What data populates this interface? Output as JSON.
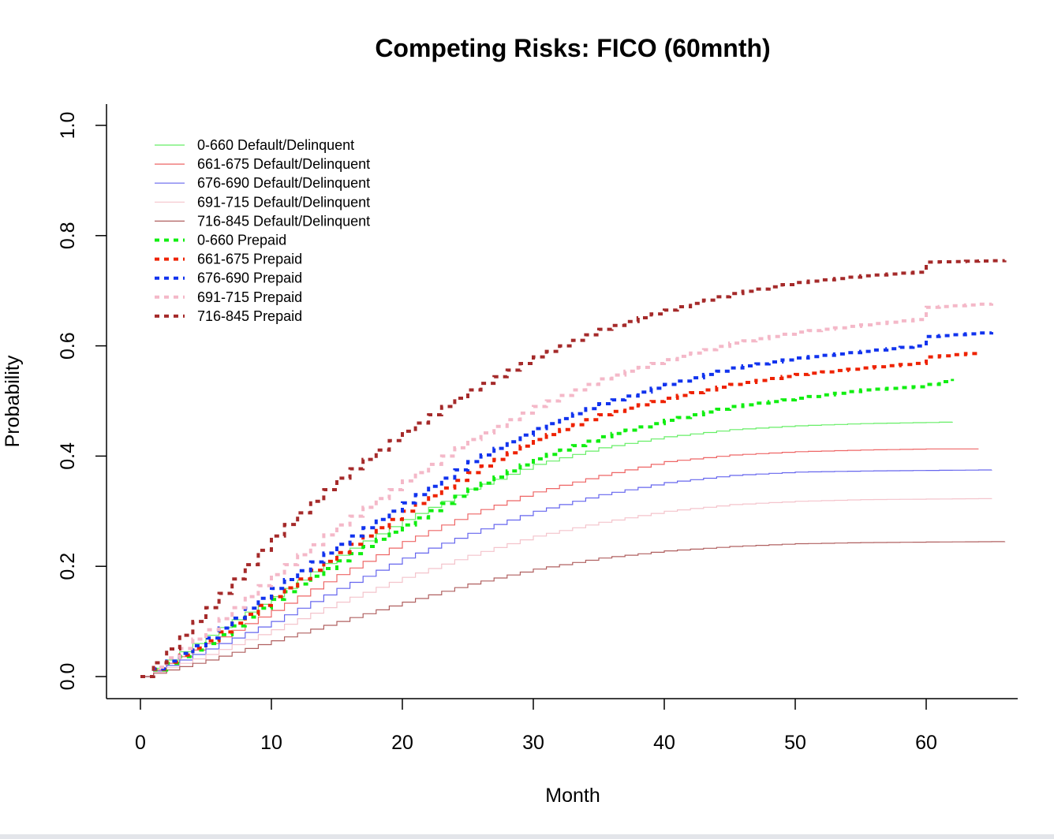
{
  "chart_data": {
    "type": "line",
    "title": "Competing Risks: FICO (60mnth)",
    "xlabel": "Month",
    "ylabel": "Probability",
    "xlim": [
      0,
      66
    ],
    "ylim": [
      0,
      1
    ],
    "x_ticks": [
      "0",
      "10",
      "20",
      "30",
      "40",
      "50",
      "60"
    ],
    "y_ticks": [
      "0.0",
      "0.2",
      "0.4",
      "0.6",
      "0.8",
      "1.0"
    ],
    "step": true,
    "grid": false,
    "legend_position": "top-left",
    "series": [
      {
        "name": "0-660 Default/Delinquent",
        "color": "#66ee66",
        "style": "solid",
        "points": [
          [
            0,
            0
          ],
          [
            5,
            0.075
          ],
          [
            10,
            0.145
          ],
          [
            15,
            0.22
          ],
          [
            20,
            0.285
          ],
          [
            25,
            0.34
          ],
          [
            30,
            0.385
          ],
          [
            35,
            0.415
          ],
          [
            40,
            0.435
          ],
          [
            45,
            0.448
          ],
          [
            50,
            0.455
          ],
          [
            55,
            0.459
          ],
          [
            60,
            0.461
          ],
          [
            62,
            0.462
          ]
        ]
      },
      {
        "name": "661-675 Default/Delinquent",
        "color": "#ee6666",
        "style": "solid",
        "points": [
          [
            0,
            0
          ],
          [
            5,
            0.06
          ],
          [
            10,
            0.12
          ],
          [
            15,
            0.185
          ],
          [
            20,
            0.245
          ],
          [
            25,
            0.295
          ],
          [
            30,
            0.335
          ],
          [
            35,
            0.365
          ],
          [
            40,
            0.39
          ],
          [
            45,
            0.402
          ],
          [
            50,
            0.408
          ],
          [
            55,
            0.411
          ],
          [
            60,
            0.413
          ],
          [
            64,
            0.413
          ]
        ]
      },
      {
        "name": "676-690 Default/Delinquent",
        "color": "#6666ee",
        "style": "solid",
        "points": [
          [
            0,
            0
          ],
          [
            5,
            0.05
          ],
          [
            10,
            0.1
          ],
          [
            15,
            0.16
          ],
          [
            20,
            0.215
          ],
          [
            25,
            0.26
          ],
          [
            30,
            0.3
          ],
          [
            35,
            0.33
          ],
          [
            40,
            0.352
          ],
          [
            45,
            0.365
          ],
          [
            50,
            0.371
          ],
          [
            55,
            0.373
          ],
          [
            60,
            0.374
          ],
          [
            65,
            0.375
          ]
        ]
      },
      {
        "name": "691-715 Default/Delinquent",
        "color": "#f4c4cc",
        "style": "solid",
        "points": [
          [
            0,
            0
          ],
          [
            5,
            0.04
          ],
          [
            10,
            0.085
          ],
          [
            15,
            0.135
          ],
          [
            20,
            0.18
          ],
          [
            25,
            0.22
          ],
          [
            30,
            0.255
          ],
          [
            35,
            0.28
          ],
          [
            40,
            0.3
          ],
          [
            45,
            0.312
          ],
          [
            50,
            0.318
          ],
          [
            55,
            0.321
          ],
          [
            60,
            0.322
          ],
          [
            65,
            0.323
          ]
        ]
      },
      {
        "name": "716-845 Default/Delinquent",
        "color": "#b06060",
        "style": "solid",
        "points": [
          [
            0,
            0
          ],
          [
            5,
            0.03
          ],
          [
            10,
            0.065
          ],
          [
            15,
            0.1
          ],
          [
            20,
            0.135
          ],
          [
            25,
            0.168
          ],
          [
            30,
            0.195
          ],
          [
            35,
            0.215
          ],
          [
            40,
            0.228
          ],
          [
            45,
            0.236
          ],
          [
            50,
            0.241
          ],
          [
            55,
            0.243
          ],
          [
            60,
            0.244
          ],
          [
            66,
            0.245
          ]
        ]
      },
      {
        "name": "0-660 Prepaid",
        "color": "#11ee11",
        "style": "dotted",
        "points": [
          [
            0,
            0
          ],
          [
            5,
            0.06
          ],
          [
            10,
            0.14
          ],
          [
            15,
            0.21
          ],
          [
            20,
            0.275
          ],
          [
            25,
            0.34
          ],
          [
            30,
            0.395
          ],
          [
            35,
            0.435
          ],
          [
            40,
            0.465
          ],
          [
            45,
            0.49
          ],
          [
            50,
            0.505
          ],
          [
            55,
            0.52
          ],
          [
            59.9,
            0.527
          ],
          [
            60,
            0.53
          ],
          [
            62,
            0.54
          ]
        ]
      },
      {
        "name": "661-675 Prepaid",
        "color": "#ee2200",
        "style": "dotted",
        "points": [
          [
            0,
            0
          ],
          [
            5,
            0.065
          ],
          [
            10,
            0.145
          ],
          [
            15,
            0.225
          ],
          [
            20,
            0.3
          ],
          [
            25,
            0.37
          ],
          [
            30,
            0.43
          ],
          [
            35,
            0.475
          ],
          [
            40,
            0.505
          ],
          [
            45,
            0.53
          ],
          [
            50,
            0.548
          ],
          [
            55,
            0.56
          ],
          [
            59.9,
            0.57
          ],
          [
            60,
            0.58
          ],
          [
            64,
            0.588
          ]
        ]
      },
      {
        "name": "676-690 Prepaid",
        "color": "#1133ee",
        "style": "dotted",
        "points": [
          [
            0,
            0
          ],
          [
            5,
            0.07
          ],
          [
            10,
            0.16
          ],
          [
            15,
            0.24
          ],
          [
            20,
            0.315
          ],
          [
            25,
            0.39
          ],
          [
            30,
            0.45
          ],
          [
            35,
            0.495
          ],
          [
            40,
            0.53
          ],
          [
            45,
            0.56
          ],
          [
            50,
            0.578
          ],
          [
            55,
            0.59
          ],
          [
            59.9,
            0.602
          ],
          [
            60,
            0.617
          ],
          [
            65,
            0.625
          ]
        ]
      },
      {
        "name": "691-715 Prepaid",
        "color": "#f4b8c8",
        "style": "dotted",
        "points": [
          [
            0,
            0
          ],
          [
            5,
            0.085
          ],
          [
            10,
            0.185
          ],
          [
            15,
            0.275
          ],
          [
            20,
            0.355
          ],
          [
            25,
            0.43
          ],
          [
            30,
            0.49
          ],
          [
            35,
            0.54
          ],
          [
            40,
            0.575
          ],
          [
            45,
            0.605
          ],
          [
            50,
            0.625
          ],
          [
            55,
            0.638
          ],
          [
            59.9,
            0.65
          ],
          [
            60,
            0.67
          ],
          [
            65,
            0.677
          ]
        ]
      },
      {
        "name": "716-845 Prepaid",
        "color": "#a52a2a",
        "style": "dotted",
        "points": [
          [
            0,
            0
          ],
          [
            5,
            0.125
          ],
          [
            10,
            0.255
          ],
          [
            15,
            0.36
          ],
          [
            20,
            0.445
          ],
          [
            25,
            0.52
          ],
          [
            30,
            0.58
          ],
          [
            35,
            0.63
          ],
          [
            40,
            0.665
          ],
          [
            45,
            0.695
          ],
          [
            50,
            0.715
          ],
          [
            55,
            0.727
          ],
          [
            59.9,
            0.735
          ],
          [
            60,
            0.752
          ],
          [
            66,
            0.755
          ]
        ]
      }
    ]
  }
}
